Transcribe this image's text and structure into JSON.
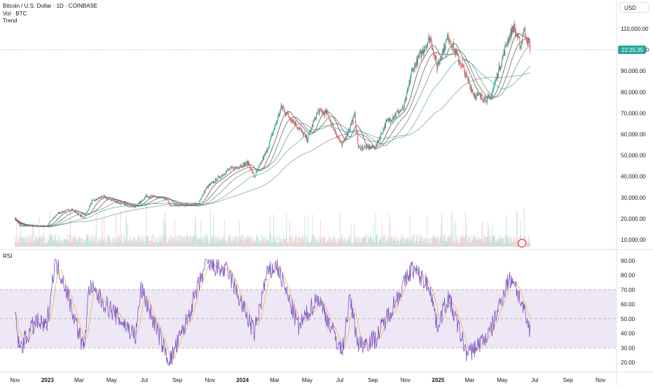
{
  "legend": {
    "symbol": "Bitcoin / U.S. Dollar · 1D · COINBASE",
    "volume": "Vol · BTC",
    "trend": "Trend"
  },
  "currency": "USD",
  "rsi_label": "RSI",
  "price_label": "22:25:35",
  "colors": {
    "up": "#26a69a",
    "down": "#ef5350",
    "rsi_line": "#7e57c2",
    "rsi_ma": "#f5b342",
    "rsi_band": "#ede7f6",
    "ma_lines": [
      "#1f1f1f",
      "#3d3d3d",
      "#666666",
      "#26a69a",
      "#7d7d7d"
    ]
  },
  "chart_data": [
    {
      "type": "candlestick",
      "title": "Bitcoin / U.S. Dollar · 1D · COINBASE",
      "y_tick_labels": [
        "110,000.00",
        "100,000.00",
        "90,000.00",
        "80,000.00",
        "70,000.00",
        "60,000.00",
        "50,000.00",
        "40,000.00",
        "30,000.00",
        "20,000.00",
        "10,000.00"
      ],
      "y_ticks": [
        110000,
        100000,
        90000,
        80000,
        70000,
        60000,
        50000,
        40000,
        30000,
        20000,
        10000
      ],
      "x_tick_labels": [
        "Nov",
        "2023",
        "Mar",
        "May",
        "Jul",
        "Sep",
        "Nov",
        "2024",
        "Mar",
        "May",
        "Jul",
        "Sep",
        "Nov",
        "2025",
        "Mar",
        "May",
        "Jul",
        "Sep",
        "Nov"
      ],
      "x_ticks": [
        "2022-11-01",
        "2023-01-01",
        "2023-03-01",
        "2023-05-01",
        "2023-07-01",
        "2023-09-01",
        "2023-11-01",
        "2024-01-01",
        "2024-03-01",
        "2024-05-01",
        "2024-07-01",
        "2024-09-01",
        "2024-11-01",
        "2025-01-01",
        "2025-03-01",
        "2025-05-01",
        "2025-07-01",
        "2025-09-01",
        "2025-11-01"
      ],
      "grid": false,
      "price_keypoints": [
        {
          "date": "2022-11-01",
          "close": 20500
        },
        {
          "date": "2022-11-10",
          "close": 16500
        },
        {
          "date": "2022-12-31",
          "close": 16600
        },
        {
          "date": "2023-01-20",
          "close": 22500
        },
        {
          "date": "2023-02-15",
          "close": 24500
        },
        {
          "date": "2023-03-10",
          "close": 20200
        },
        {
          "date": "2023-03-25",
          "close": 28000
        },
        {
          "date": "2023-04-14",
          "close": 30500
        },
        {
          "date": "2023-05-20",
          "close": 27000
        },
        {
          "date": "2023-06-15",
          "close": 25500
        },
        {
          "date": "2023-07-05",
          "close": 30800
        },
        {
          "date": "2023-08-10",
          "close": 29500
        },
        {
          "date": "2023-08-20",
          "close": 26000
        },
        {
          "date": "2023-10-10",
          "close": 27000
        },
        {
          "date": "2023-10-25",
          "close": 34500
        },
        {
          "date": "2023-12-05",
          "close": 43000
        },
        {
          "date": "2024-01-12",
          "close": 46500
        },
        {
          "date": "2024-01-23",
          "close": 39500
        },
        {
          "date": "2024-02-15",
          "close": 52000
        },
        {
          "date": "2024-03-14",
          "close": 73000
        },
        {
          "date": "2024-04-15",
          "close": 63000
        },
        {
          "date": "2024-05-01",
          "close": 57500
        },
        {
          "date": "2024-05-21",
          "close": 71000
        },
        {
          "date": "2024-06-07",
          "close": 70000
        },
        {
          "date": "2024-07-05",
          "close": 54500
        },
        {
          "date": "2024-07-29",
          "close": 69000
        },
        {
          "date": "2024-08-05",
          "close": 53500
        },
        {
          "date": "2024-09-06",
          "close": 54000
        },
        {
          "date": "2024-09-27",
          "close": 66000
        },
        {
          "date": "2024-10-29",
          "close": 72500
        },
        {
          "date": "2024-11-13",
          "close": 90000
        },
        {
          "date": "2024-12-17",
          "close": 106000
        },
        {
          "date": "2024-12-30",
          "close": 92000
        },
        {
          "date": "2025-01-20",
          "close": 106500
        },
        {
          "date": "2025-02-25",
          "close": 86000
        },
        {
          "date": "2025-03-10",
          "close": 78500
        },
        {
          "date": "2025-04-08",
          "close": 76500
        },
        {
          "date": "2025-05-10",
          "close": 103500
        },
        {
          "date": "2025-05-22",
          "close": 111000
        },
        {
          "date": "2025-06-05",
          "close": 101500
        },
        {
          "date": "2025-06-10",
          "close": 110000
        },
        {
          "date": "2025-06-22",
          "close": 101000
        }
      ],
      "last_price_label": "22:25:35"
    },
    {
      "type": "line",
      "title": "RSI",
      "y_tick_labels": [
        "90.00",
        "80.00",
        "70.00",
        "60.00",
        "50.00",
        "40.00",
        "30.00",
        "20.00"
      ],
      "y_ticks": [
        90,
        80,
        70,
        60,
        50,
        40,
        30,
        20
      ],
      "band": [
        30,
        70
      ],
      "midline": 50,
      "series_keypoints": [
        {
          "date": "2022-11-01",
          "value": 55
        },
        {
          "date": "2022-11-09",
          "value": 29
        },
        {
          "date": "2022-12-10",
          "value": 48
        },
        {
          "date": "2022-12-30",
          "value": 44
        },
        {
          "date": "2023-01-15",
          "value": 90
        },
        {
          "date": "2023-02-01",
          "value": 75
        },
        {
          "date": "2023-03-10",
          "value": 29
        },
        {
          "date": "2023-03-20",
          "value": 72
        },
        {
          "date": "2023-05-10",
          "value": 52
        },
        {
          "date": "2023-06-15",
          "value": 38
        },
        {
          "date": "2023-06-25",
          "value": 71
        },
        {
          "date": "2023-08-17",
          "value": 20
        },
        {
          "date": "2023-09-15",
          "value": 45
        },
        {
          "date": "2023-10-25",
          "value": 88
        },
        {
          "date": "2023-12-05",
          "value": 82
        },
        {
          "date": "2024-01-23",
          "value": 40
        },
        {
          "date": "2024-02-15",
          "value": 80
        },
        {
          "date": "2024-03-05",
          "value": 87
        },
        {
          "date": "2024-04-15",
          "value": 44
        },
        {
          "date": "2024-05-21",
          "value": 65
        },
        {
          "date": "2024-07-05",
          "value": 27
        },
        {
          "date": "2024-07-20",
          "value": 64
        },
        {
          "date": "2024-08-05",
          "value": 32
        },
        {
          "date": "2024-09-06",
          "value": 36
        },
        {
          "date": "2024-10-10",
          "value": 60
        },
        {
          "date": "2024-11-13",
          "value": 85
        },
        {
          "date": "2024-12-17",
          "value": 72
        },
        {
          "date": "2024-12-30",
          "value": 45
        },
        {
          "date": "2025-01-20",
          "value": 65
        },
        {
          "date": "2025-02-25",
          "value": 25
        },
        {
          "date": "2025-04-08",
          "value": 40
        },
        {
          "date": "2025-05-10",
          "value": 75
        },
        {
          "date": "2025-05-22",
          "value": 78
        },
        {
          "date": "2025-06-22",
          "value": 41
        }
      ]
    }
  ]
}
